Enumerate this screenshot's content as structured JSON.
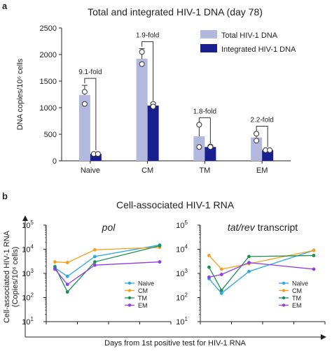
{
  "chart_data": [
    {
      "panel": "a",
      "type": "bar",
      "title": "Total and integrated HIV-1 DNA (day 78)",
      "ylabel": "DNA copies/10⁶ cells",
      "ylim": [
        0,
        2500
      ],
      "yticks": [
        0,
        500,
        1000,
        1500,
        2000,
        2500
      ],
      "categories": [
        "Naive",
        "CM",
        "TM",
        "EM"
      ],
      "series": [
        {
          "name": "Total HIV-1 DNA",
          "color": "#b3b9de",
          "values": [
            1240,
            1920,
            460,
            440
          ],
          "error_high": [
            1420,
            2110,
            680,
            520
          ],
          "points": [
            [
              1300,
              1070
            ],
            [
              2050,
              1820
            ],
            [
              680,
              260
            ],
            [
              510,
              380
            ]
          ]
        },
        {
          "name": "Integrated HIV-1 DNA",
          "color": "#1a1f8f",
          "values": [
            130,
            1040,
            260,
            200
          ],
          "error_high": [
            160,
            1090,
            290,
            220
          ],
          "points": [
            [
              130,
              130
            ],
            [
              1070,
              1020
            ],
            [
              270,
              260
            ],
            [
              200,
              200
            ]
          ]
        }
      ],
      "fold_labels": [
        "9.1-fold",
        "1.9-fold",
        "1.8-fold",
        "2.2-fold"
      ],
      "legend": "top-right"
    },
    {
      "panel": "b",
      "type": "line",
      "title": "Cell-associated HIV-1 RNA",
      "ylabel": "Cell-associated HIV-1 RNA (Copies/10⁶ cells)",
      "xlabel": "Days from 1st positive test for HIV-1 RNA",
      "yscale": "log",
      "ylim_exp": [
        1,
        5
      ],
      "xlim": [
        0,
        200
      ],
      "xticks": [
        0,
        50,
        100,
        150,
        200
      ],
      "subplots": [
        {
          "title": "pol",
          "series": [
            {
              "name": "Naive",
              "color": "#29a9e1",
              "x": [
                14,
                34,
                78,
                182
              ],
              "y": [
                1700,
                750,
                5000,
                15000
              ]
            },
            {
              "name": "CM",
              "color": "#f5a01a",
              "x": [
                14,
                34,
                78,
                182
              ],
              "y": [
                3000,
                2800,
                9500,
                12000
              ]
            },
            {
              "name": "TM",
              "color": "#1a8f50",
              "x": [
                14,
                34,
                78,
                182
              ],
              "y": [
                1900,
                170,
                3000,
                14000
              ]
            },
            {
              "name": "EM",
              "color": "#8f3ee8",
              "x": [
                14,
                34,
                78,
                182
              ],
              "y": [
                1500,
                350,
                2200,
                3000
              ]
            }
          ]
        },
        {
          "title_italic": "tat/rev",
          "title_rest": " transcript",
          "series": [
            {
              "name": "Naive",
              "color": "#29a9e1",
              "x": [
                14,
                34,
                78,
                182
              ],
              "y": [
                600,
                150,
                1200,
                9000
              ]
            },
            {
              "name": "CM",
              "color": "#f5a01a",
              "x": [
                14,
                34,
                78,
                182
              ],
              "y": [
                5500,
                1500,
                2500,
                9000
              ]
            },
            {
              "name": "TM",
              "color": "#1a8f50",
              "x": [
                14,
                34,
                78,
                182
              ],
              "y": [
                1800,
                200,
                5000,
                5500
              ]
            },
            {
              "name": "EM",
              "color": "#8f3ee8",
              "x": [
                14,
                34,
                78,
                182
              ],
              "y": [
                700,
                900,
                2800,
                1500
              ]
            }
          ]
        }
      ],
      "legend": "bottom-right"
    }
  ]
}
